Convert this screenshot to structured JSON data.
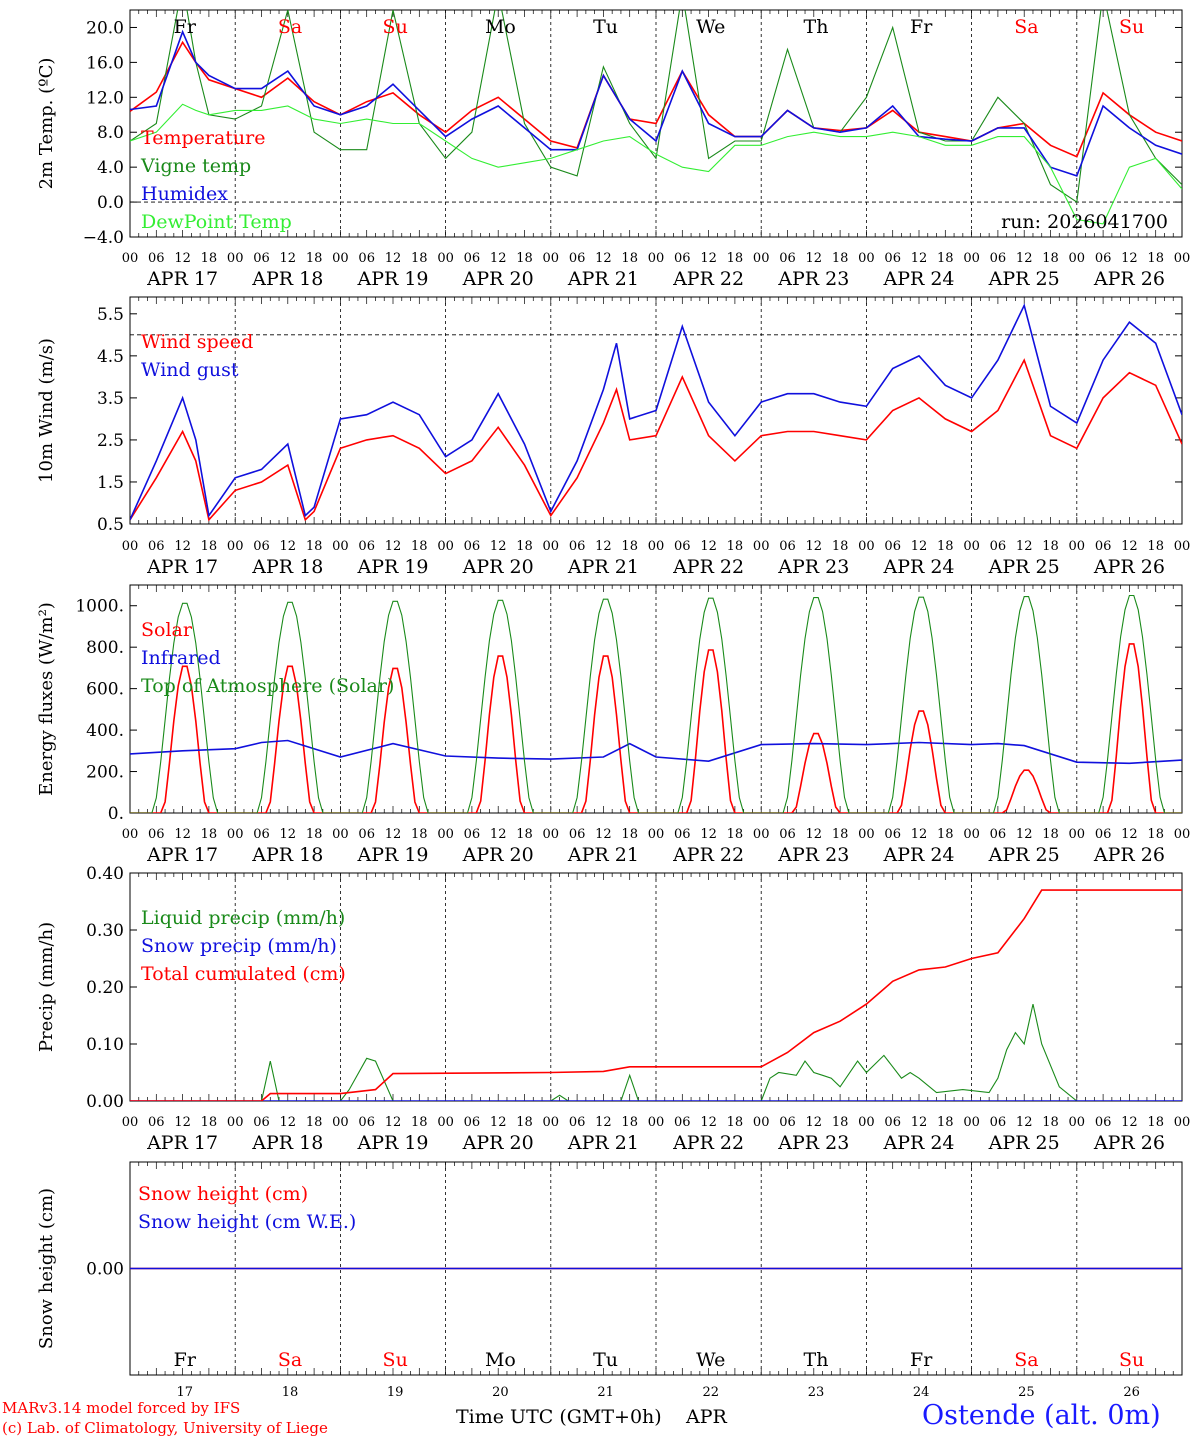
{
  "run_label": "run: 2026041700",
  "station": "Ostende (alt. 0m)",
  "credit_model": "MARv3.14 model forced by IFS",
  "credit_lab": "(c) Lab. of Climatology, University of Liege",
  "x_title": "Time UTC (GMT+0h)",
  "month_label": "APR",
  "days": [
    "17",
    "18",
    "19",
    "20",
    "21",
    "22",
    "23",
    "24",
    "25",
    "26"
  ],
  "date_labels": [
    "APR 17",
    "APR 18",
    "APR 19",
    "APR 20",
    "APR 21",
    "APR 22",
    "APR 23",
    "APR 24",
    "APR 25",
    "APR 26"
  ],
  "weekdays": [
    "Fr",
    "Sa",
    "Su",
    "Mo",
    "Tu",
    "We",
    "Th",
    "Fr",
    "Sa",
    "Su"
  ],
  "weekday_colors": [
    "#000000",
    "#ff0000",
    "#ff0000",
    "#000000",
    "#000000",
    "#000000",
    "#000000",
    "#000000",
    "#ff0000",
    "#ff0000"
  ],
  "hour_ticks": [
    "00",
    "06",
    "12",
    "18"
  ],
  "final_hour_tick": "00",
  "colors": {
    "red": "#ff0000",
    "green": "#1a8a1a",
    "blue": "#1010dd",
    "lightgreen": "#33ee33",
    "station": "#1a1aff"
  },
  "chart_data": [
    {
      "type": "line",
      "id": "temp",
      "ylabel": "2m Temp. (ºC)",
      "ylim": [
        -4.0,
        22.0
      ],
      "yticks": [
        -4.0,
        0.0,
        4.0,
        8.0,
        12.0,
        16.0,
        20.0
      ],
      "ytick_labels": [
        "−4.0",
        "0.0",
        "4.0",
        "8.0",
        "12.0",
        "16.0",
        "20.0"
      ],
      "ref_line": 0.0,
      "x": [
        0,
        6,
        12,
        15,
        18,
        24,
        30,
        36,
        42,
        48,
        54,
        60,
        66,
        72,
        78,
        84,
        90,
        96,
        102,
        108,
        114,
        120,
        126,
        132,
        138,
        144,
        150,
        156,
        162,
        168,
        174,
        180,
        186,
        192,
        198,
        204,
        210,
        216,
        222,
        228,
        234,
        240
      ],
      "series": [
        {
          "name": "Temperature",
          "color": "red",
          "values": [
            10.4,
            12.6,
            18.3,
            16.0,
            14.0,
            13.0,
            12.0,
            14.2,
            11.5,
            10.0,
            11.5,
            12.5,
            10.0,
            8.0,
            10.5,
            12.0,
            9.5,
            7.0,
            6.2,
            14.5,
            9.5,
            9.0,
            15.0,
            10.0,
            7.5,
            7.5,
            10.5,
            8.5,
            8.2,
            8.5,
            10.5,
            8.0,
            7.5,
            7.0,
            8.5,
            9.0,
            6.5,
            5.2,
            12.5,
            10.0,
            8.0,
            7.0
          ]
        },
        {
          "name": "Vigne temp",
          "color": "green",
          "values": [
            7.0,
            9.0,
            25.0,
            16.0,
            10.0,
            9.5,
            11.0,
            22.0,
            8.0,
            6.0,
            6.0,
            22.0,
            9.0,
            5.0,
            8.0,
            24.0,
            9.0,
            4.0,
            3.0,
            15.5,
            9.0,
            5.0,
            24.0,
            5.0,
            7.0,
            7.0,
            17.5,
            8.5,
            8.0,
            12.0,
            20.0,
            8.0,
            7.0,
            7.0,
            12.0,
            9.0,
            2.0,
            0.0,
            24.0,
            10.0,
            5.0,
            2.0
          ]
        },
        {
          "name": "Humidex",
          "color": "blue",
          "values": [
            10.6,
            11.0,
            19.5,
            16.0,
            14.5,
            13.0,
            13.0,
            15.0,
            11.0,
            10.0,
            11.0,
            13.5,
            10.5,
            7.5,
            9.5,
            11.0,
            8.5,
            6.0,
            6.0,
            14.5,
            9.5,
            7.0,
            15.0,
            9.0,
            7.5,
            7.5,
            10.5,
            8.5,
            8.0,
            8.5,
            11.0,
            7.5,
            7.2,
            7.0,
            8.5,
            8.5,
            4.0,
            3.0,
            11.0,
            8.5,
            6.5,
            5.5
          ]
        },
        {
          "name": "DewPoint Temp",
          "color": "lightgreen",
          "values": [
            7.0,
            8.0,
            11.2,
            10.5,
            10.0,
            10.5,
            10.5,
            11.0,
            9.5,
            9.0,
            9.5,
            9.0,
            9.0,
            7.0,
            5.0,
            4.0,
            4.5,
            5.0,
            6.0,
            7.0,
            7.5,
            5.5,
            4.0,
            3.5,
            6.5,
            6.5,
            7.5,
            8.0,
            7.5,
            7.5,
            8.0,
            7.5,
            6.5,
            6.5,
            7.5,
            7.5,
            4.0,
            -2.0,
            -2.5,
            4.0,
            5.0,
            1.5
          ]
        }
      ]
    },
    {
      "type": "line",
      "id": "wind",
      "ylabel": "10m Wind (m/s)",
      "ylim": [
        0.5,
        5.9
      ],
      "yticks": [
        0.5,
        1.5,
        2.5,
        3.5,
        4.5,
        5.5
      ],
      "ytick_labels": [
        "0.5",
        "1.5",
        "2.5",
        "3.5",
        "4.5",
        "5.5"
      ],
      "ref_line": 5.0,
      "x": [
        0,
        6,
        12,
        15,
        18,
        24,
        30,
        36,
        40,
        42,
        48,
        54,
        60,
        66,
        72,
        78,
        84,
        90,
        96,
        102,
        108,
        111,
        114,
        120,
        126,
        132,
        138,
        144,
        150,
        156,
        162,
        168,
        174,
        180,
        186,
        192,
        198,
        204,
        210,
        216,
        222,
        228,
        234,
        240
      ],
      "series": [
        {
          "name": "Wind speed",
          "color": "red",
          "values": [
            0.6,
            1.6,
            2.7,
            2.0,
            0.6,
            1.3,
            1.5,
            1.9,
            0.6,
            0.8,
            2.3,
            2.5,
            2.6,
            2.3,
            1.7,
            2.0,
            2.8,
            1.9,
            0.7,
            1.6,
            2.9,
            3.7,
            2.5,
            2.6,
            4.0,
            2.6,
            2.0,
            2.6,
            2.7,
            2.7,
            2.6,
            2.5,
            3.2,
            3.5,
            3.0,
            2.7,
            3.2,
            4.4,
            2.6,
            2.3,
            3.5,
            4.1,
            3.8,
            2.4
          ]
        },
        {
          "name": "Wind gust",
          "color": "blue",
          "values": [
            0.6,
            2.0,
            3.5,
            2.5,
            0.7,
            1.6,
            1.8,
            2.4,
            0.7,
            0.9,
            3.0,
            3.1,
            3.4,
            3.1,
            2.1,
            2.5,
            3.6,
            2.4,
            0.8,
            2.0,
            3.7,
            4.8,
            3.0,
            3.2,
            5.2,
            3.4,
            2.6,
            3.4,
            3.6,
            3.6,
            3.4,
            3.3,
            4.2,
            4.5,
            3.8,
            3.5,
            4.4,
            5.7,
            3.3,
            2.9,
            4.4,
            5.3,
            4.8,
            3.1
          ]
        }
      ]
    },
    {
      "type": "line",
      "id": "energy",
      "ylabel": "Energy fluxes (W/m²)",
      "ylim": [
        0,
        1100
      ],
      "yticks": [
        0,
        200,
        400,
        600,
        800,
        1000
      ],
      "ytick_labels": [
        "0.",
        "200.",
        "400.",
        "600.",
        "800.",
        "1000."
      ],
      "series": [
        {
          "name": "Solar",
          "color": "red",
          "peaks": [
            {
              "day": 0,
              "value": 720
            },
            {
              "day": 1,
              "value": 720
            },
            {
              "day": 2,
              "value": 710
            },
            {
              "day": 3,
              "value": 770
            },
            {
              "day": 4,
              "value": 770
            },
            {
              "day": 5,
              "value": 800
            },
            {
              "day": 6,
              "value": 390
            },
            {
              "day": 7,
              "value": 500
            },
            {
              "day": 8,
              "value": 210
            },
            {
              "day": 9,
              "value": 830
            }
          ]
        },
        {
          "name": "Infrared",
          "color": "blue",
          "x": [
            0,
            12,
            24,
            30,
            36,
            48,
            60,
            72,
            84,
            96,
            108,
            114,
            120,
            132,
            144,
            156,
            168,
            180,
            192,
            198,
            204,
            216,
            228,
            240
          ],
          "values": [
            285,
            300,
            310,
            340,
            350,
            270,
            335,
            275,
            265,
            260,
            270,
            335,
            270,
            250,
            330,
            335,
            330,
            340,
            330,
            335,
            325,
            245,
            240,
            255
          ]
        },
        {
          "name": "Top of Atmosphere (Solar)",
          "color": "green",
          "peaks": [
            {
              "day": 0,
              "value": 1020
            },
            {
              "day": 1,
              "value": 1025
            },
            {
              "day": 2,
              "value": 1030
            },
            {
              "day": 3,
              "value": 1035
            },
            {
              "day": 4,
              "value": 1040
            },
            {
              "day": 5,
              "value": 1045
            },
            {
              "day": 6,
              "value": 1048
            },
            {
              "day": 7,
              "value": 1050
            },
            {
              "day": 8,
              "value": 1053
            },
            {
              "day": 9,
              "value": 1058
            }
          ]
        }
      ]
    },
    {
      "type": "line",
      "id": "precip",
      "ylabel": "Precip (mm/h)",
      "ylim": [
        0,
        0.4
      ],
      "yticks": [
        0,
        0.1,
        0.2,
        0.3,
        0.4
      ],
      "ytick_labels": [
        "0.00",
        "0.10",
        "0.20",
        "0.30",
        "0.40"
      ],
      "series": [
        {
          "name": "Liquid precip (mm/h)",
          "color": "green",
          "x": [
            0,
            30,
            32,
            34,
            36,
            48,
            50,
            54,
            56,
            60,
            96,
            98,
            100,
            112,
            114,
            116,
            144,
            146,
            148,
            152,
            154,
            156,
            158,
            160,
            162,
            166,
            168,
            172,
            176,
            178,
            180,
            184,
            190,
            196,
            198,
            200,
            202,
            204,
            206,
            208,
            212,
            216,
            240
          ],
          "values": [
            0,
            0,
            0.07,
            0,
            0,
            0,
            0.02,
            0.075,
            0.07,
            0,
            0,
            0.01,
            0,
            0,
            0.045,
            0,
            0,
            0.04,
            0.05,
            0.045,
            0.07,
            0.05,
            0.045,
            0.04,
            0.025,
            0.07,
            0.05,
            0.08,
            0.04,
            0.05,
            0.04,
            0.015,
            0.02,
            0.015,
            0.04,
            0.09,
            0.12,
            0.1,
            0.17,
            0.1,
            0.025,
            0,
            0
          ]
        },
        {
          "name": "Snow precip (mm/h)",
          "color": "blue",
          "x": [
            0,
            240
          ],
          "values": [
            0,
            0
          ]
        },
        {
          "name": "Total cumulated (cm)",
          "color": "red",
          "x": [
            0,
            30,
            32,
            48,
            56,
            60,
            96,
            108,
            114,
            144,
            150,
            156,
            162,
            168,
            174,
            180,
            186,
            192,
            198,
            204,
            208,
            210,
            240
          ],
          "values": [
            0,
            0,
            0.013,
            0.013,
            0.02,
            0.048,
            0.05,
            0.052,
            0.06,
            0.06,
            0.085,
            0.12,
            0.14,
            0.17,
            0.21,
            0.23,
            0.235,
            0.25,
            0.26,
            0.32,
            0.37,
            0.37,
            0.37
          ]
        }
      ]
    },
    {
      "type": "line",
      "id": "snow",
      "ylabel": "Snow height (cm)",
      "ylim": [
        -0.5,
        0.5
      ],
      "yticks": [
        0
      ],
      "ytick_labels": [
        "0.00"
      ],
      "x": [
        0,
        240
      ],
      "series": [
        {
          "name": "Snow height (cm)",
          "color": "red",
          "values": [
            0,
            0
          ]
        },
        {
          "name": "Snow height (cm W.E.)",
          "color": "blue",
          "values": [
            0,
            0
          ]
        }
      ]
    }
  ]
}
